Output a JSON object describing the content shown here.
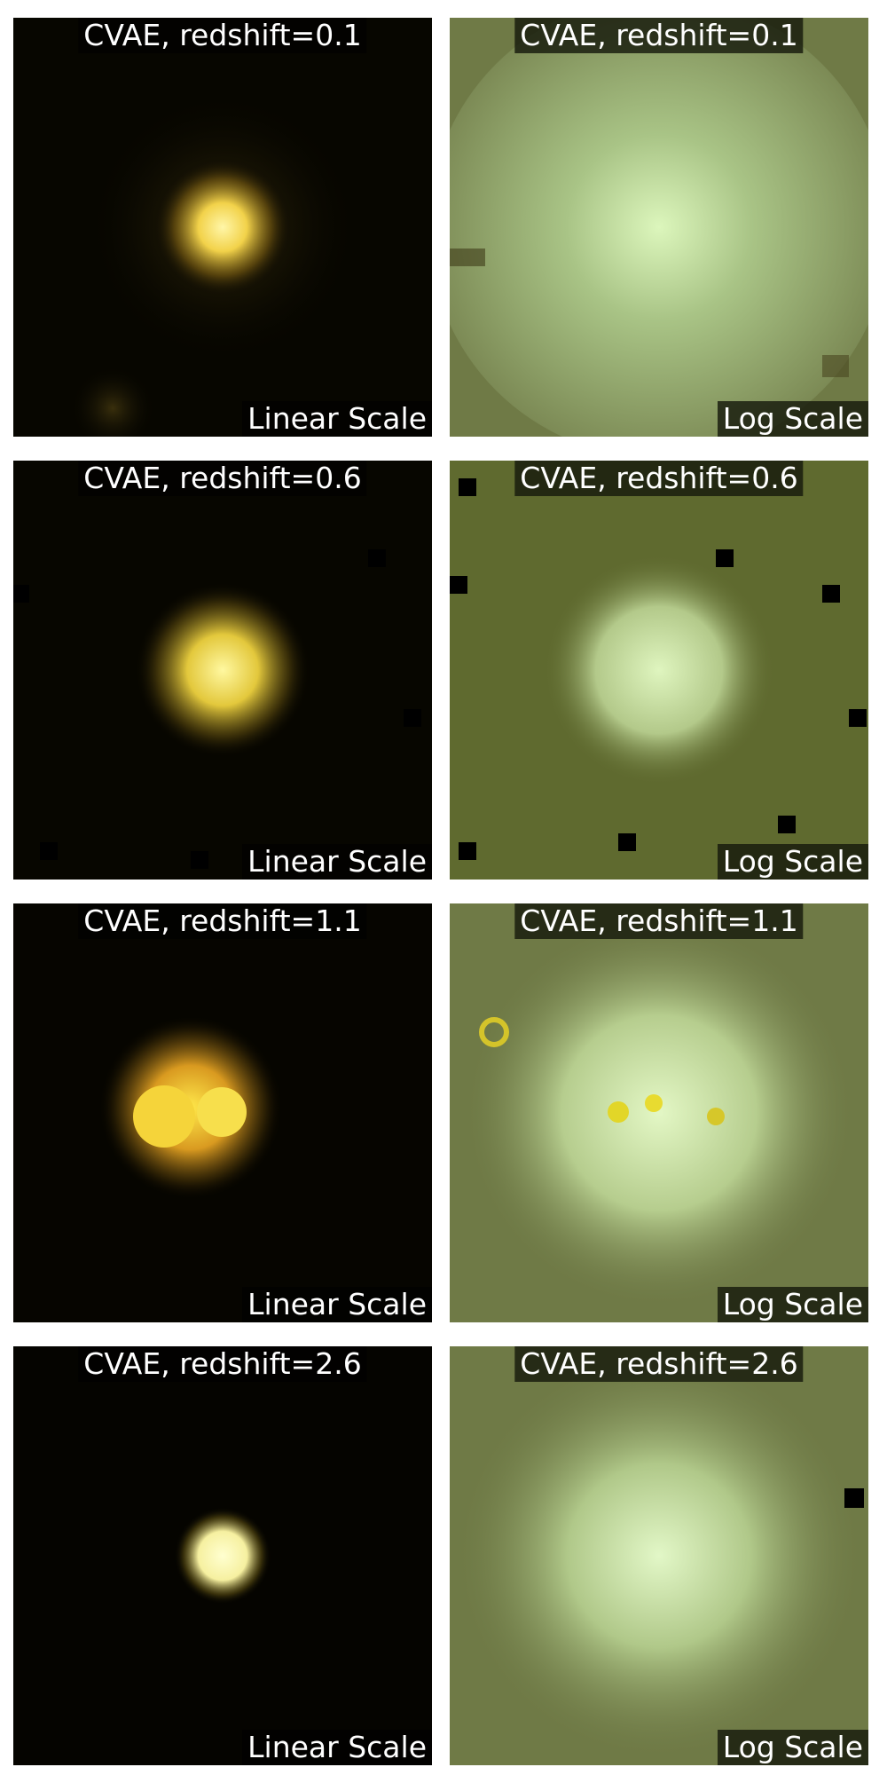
{
  "panels": [
    {
      "title": "CVAE, redshift=0.1",
      "scale_label": "Linear Scale",
      "scale": "linear"
    },
    {
      "title": "CVAE, redshift=0.1",
      "scale_label": "Log Scale",
      "scale": "log"
    },
    {
      "title": "CVAE, redshift=0.6",
      "scale_label": "Linear Scale",
      "scale": "linear"
    },
    {
      "title": "CVAE, redshift=0.6",
      "scale_label": "Log Scale",
      "scale": "log"
    },
    {
      "title": "CVAE, redshift=1.1",
      "scale_label": "Linear Scale",
      "scale": "linear"
    },
    {
      "title": "CVAE, redshift=1.1",
      "scale_label": "Log Scale",
      "scale": "log"
    },
    {
      "title": "CVAE, redshift=2.6",
      "scale_label": "Linear Scale",
      "scale": "linear"
    },
    {
      "title": "CVAE, redshift=2.6",
      "scale_label": "Log Scale",
      "scale": "log"
    }
  ],
  "colors": {
    "linear_background": "#050400",
    "galaxy_core": "#fff59a",
    "galaxy_halo": "#c9a02a",
    "log_background": "#6f7a46",
    "log_core": "#d9f3b8",
    "log_halo": "#a9c486"
  }
}
